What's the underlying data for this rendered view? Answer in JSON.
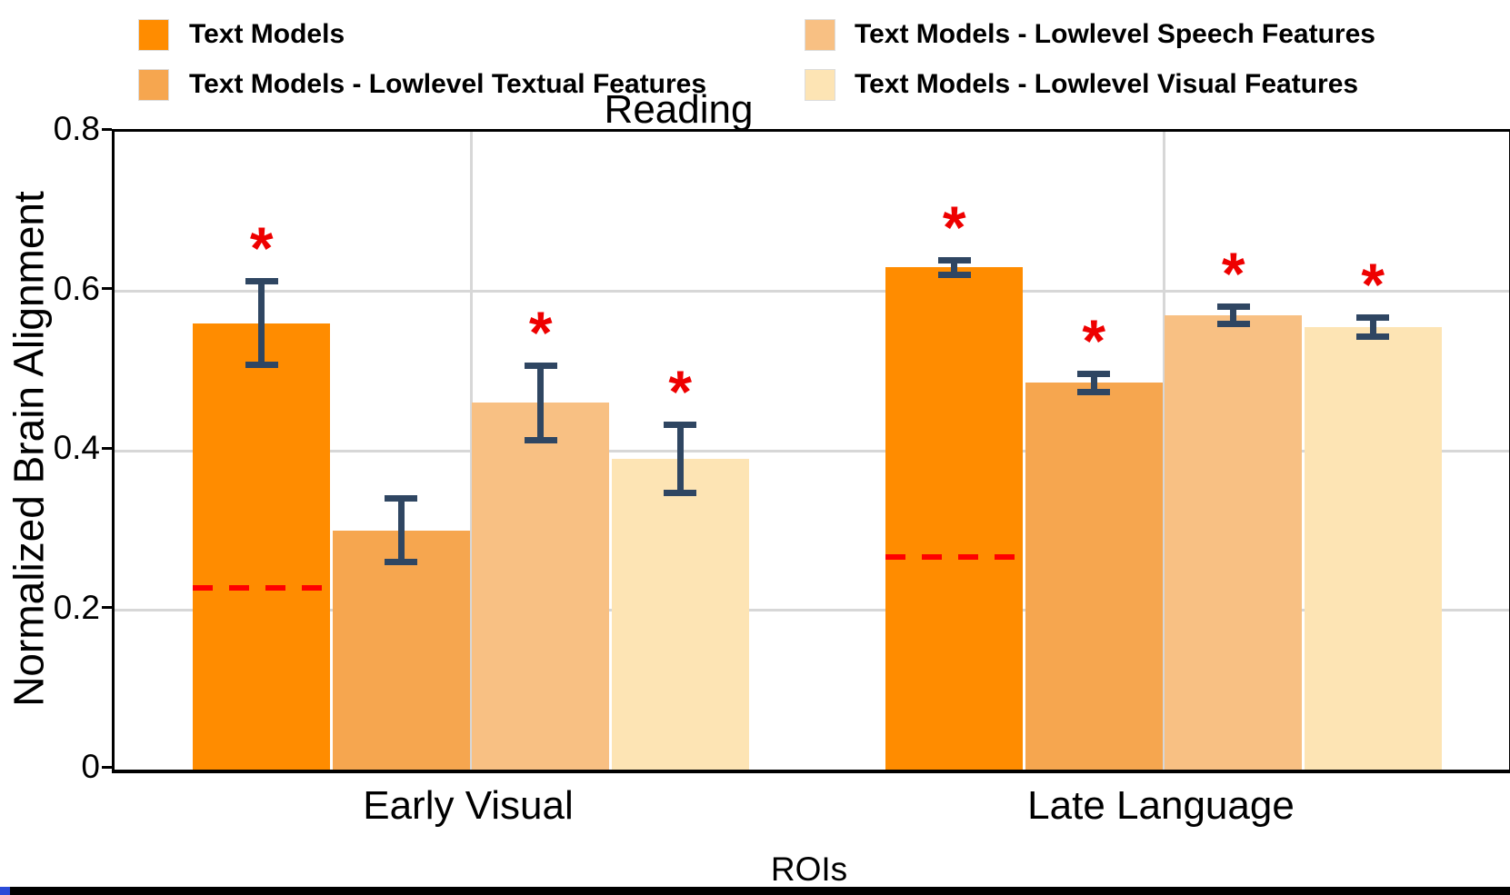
{
  "chart_data": {
    "type": "bar",
    "title": "Reading",
    "xlabel": "ROIs",
    "ylabel": "Normalized Brain Alignment",
    "categories": [
      "Early Visual",
      "Late Language"
    ],
    "ylim": [
      0,
      0.8
    ],
    "yticks": [
      0,
      0.2,
      0.4,
      0.6,
      0.8
    ],
    "ytick_labels": [
      "0",
      "0.2",
      "0.4",
      "0.6",
      "0.8"
    ],
    "grid": true,
    "legend_position": "top, two columns",
    "series": [
      {
        "name": "Text Models",
        "color": "#FF8C00",
        "values": [
          0.56,
          0.63
        ],
        "errors": [
          0.056,
          0.013
        ],
        "significant": [
          true,
          true
        ]
      },
      {
        "name": "Text Models - Lowlevel Textual Features",
        "color": "#F6A64F",
        "values": [
          0.3,
          0.485
        ],
        "errors": [
          0.044,
          0.015
        ],
        "significant": [
          false,
          true
        ]
      },
      {
        "name": "Text Models - Lowlevel Speech Features",
        "color": "#F8C083",
        "values": [
          0.46,
          0.57
        ],
        "errors": [
          0.051,
          0.015
        ],
        "significant": [
          true,
          true
        ]
      },
      {
        "name": "Text Models - Lowlevel Visual Features",
        "color": "#FDE4B4",
        "values": [
          0.39,
          0.555
        ],
        "errors": [
          0.047,
          0.016
        ],
        "significant": [
          true,
          true
        ]
      }
    ],
    "dashed_baselines": {
      "values": [
        0.228,
        0.267
      ],
      "color": "#FF0000",
      "span": "first bar of each group"
    },
    "error_bar_color": "#2F4662",
    "significance_marker": "*",
    "significance_color": "#EE0000"
  }
}
